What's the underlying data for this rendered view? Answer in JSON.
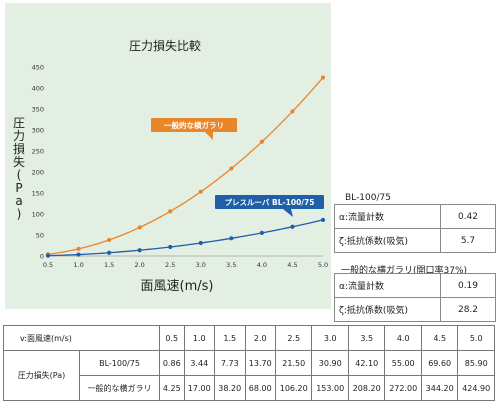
{
  "chart_data": {
    "type": "line",
    "title": "圧力損失比較",
    "xlabel": "面風速(m/s)",
    "ylabel": "圧力損失(Pa)",
    "x": [
      0.5,
      1.0,
      1.5,
      2.0,
      2.5,
      3.0,
      3.5,
      4.0,
      4.5,
      5.0
    ],
    "x_tick_labels": [
      "0.5",
      "1.0",
      "1.5",
      "2.0",
      "2.5",
      "3.0",
      "3.5",
      "4.0",
      "4.5",
      "5.0"
    ],
    "y_ticks": [
      0,
      50,
      100,
      150,
      200,
      250,
      300,
      350,
      400,
      450
    ],
    "xlim": [
      0.5,
      5.0
    ],
    "ylim": [
      0,
      450
    ],
    "grid": false,
    "series": [
      {
        "name": "一般的な横ガラリ",
        "color": "#e8862a",
        "values": [
          4.25,
          17.0,
          38.2,
          68.0,
          106.2,
          153.0,
          208.2,
          272.0,
          344.2,
          424.9
        ]
      },
      {
        "name": "プレスルーバ BL-100/75",
        "color": "#1f5ea8",
        "values": [
          0.86,
          3.44,
          7.73,
          13.7,
          21.5,
          30.9,
          42.1,
          55.0,
          69.6,
          85.9
        ]
      }
    ]
  },
  "coefficients": {
    "bl": {
      "title": "BL-100/75",
      "rows": [
        {
          "label": "α:流量計数",
          "value": "0.42"
        },
        {
          "label": "ζ:抵抗係数(吸気)",
          "value": "5.7"
        }
      ]
    },
    "general": {
      "title": "一般的な横ガラリ(開口率37%)",
      "rows": [
        {
          "label": "α:流量計数",
          "value": "0.19"
        },
        {
          "label": "ζ:抵抗係数(吸気)",
          "value": "28.2"
        }
      ]
    }
  },
  "data_table": {
    "header_label": "v:面風速(m/s)",
    "velocities": [
      "0.5",
      "1.0",
      "1.5",
      "2.0",
      "2.5",
      "3.0",
      "3.5",
      "4.0",
      "4.5",
      "5.0"
    ],
    "row_group_label": "圧力損失(Pa)",
    "rows": [
      {
        "name": "BL-100/75",
        "values": [
          "0.86",
          "3.44",
          "7.73",
          "13.70",
          "21.50",
          "30.90",
          "42.10",
          "55.00",
          "69.60",
          "85.90"
        ]
      },
      {
        "name": "一般的な横ガラリ",
        "values": [
          "4.25",
          "17.00",
          "38.20",
          "68.00",
          "106.20",
          "153.00",
          "208.20",
          "272.00",
          "344.20",
          "424.90"
        ]
      }
    ]
  }
}
